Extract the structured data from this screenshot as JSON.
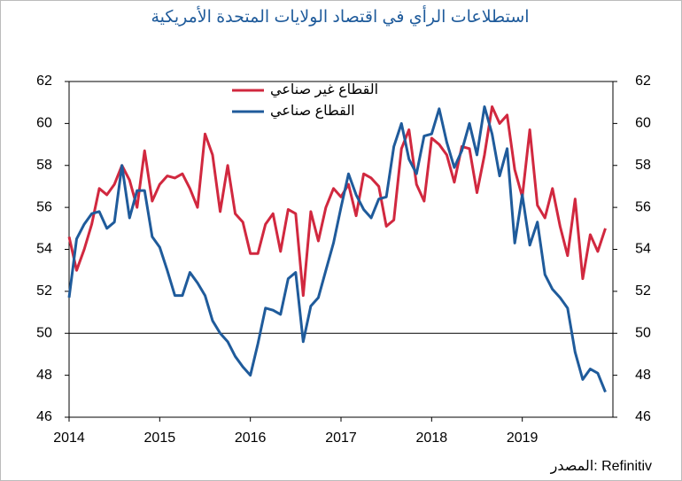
{
  "chart_data": {
    "type": "line",
    "title": "استطلاعات الرأي في اقتصاد الولايات المتحدة الأمريكية",
    "source": "المصدر: Refinitiv",
    "x": [
      2014,
      2014.083,
      2014.167,
      2014.25,
      2014.333,
      2014.417,
      2014.5,
      2014.583,
      2014.667,
      2014.75,
      2014.833,
      2014.917,
      2015,
      2015.083,
      2015.167,
      2015.25,
      2015.333,
      2015.417,
      2015.5,
      2015.583,
      2015.667,
      2015.75,
      2015.833,
      2015.917,
      2016,
      2016.083,
      2016.167,
      2016.25,
      2016.333,
      2016.417,
      2016.5,
      2016.583,
      2016.667,
      2016.75,
      2016.833,
      2016.917,
      2017,
      2017.083,
      2017.167,
      2017.25,
      2017.333,
      2017.417,
      2017.5,
      2017.583,
      2017.667,
      2017.75,
      2017.833,
      2017.917,
      2018,
      2018.083,
      2018.167,
      2018.25,
      2018.333,
      2018.417,
      2018.5,
      2018.583,
      2018.667,
      2018.75,
      2018.833,
      2018.917,
      2019,
      2019.083,
      2019.167,
      2019.25,
      2019.333,
      2019.417,
      2019.5,
      2019.583,
      2019.667,
      2019.75,
      2019.833,
      2019.917
    ],
    "series": [
      {
        "name": "القطاع غير صناعي",
        "color": "#d1283f",
        "values": [
          54.6,
          53.0,
          54.0,
          55.2,
          56.9,
          56.6,
          57.1,
          58.0,
          57.3,
          56.0,
          58.7,
          56.3,
          57.1,
          57.5,
          57.4,
          57.6,
          56.9,
          56.0,
          59.5,
          58.5,
          55.8,
          58.0,
          55.7,
          55.3,
          53.8,
          53.8,
          55.2,
          55.7,
          53.9,
          55.9,
          55.7,
          51.8,
          55.8,
          54.4,
          56.0,
          56.9,
          56.5,
          57.1,
          55.6,
          57.6,
          57.4,
          57.0,
          55.1,
          55.4,
          58.8,
          59.7,
          57.1,
          56.3,
          59.3,
          59.0,
          58.5,
          57.2,
          58.9,
          58.8,
          56.7,
          58.5,
          60.8,
          60.0,
          60.4,
          57.8,
          56.5,
          59.7,
          56.1,
          55.5,
          56.9,
          55.1,
          53.7,
          56.4,
          52.6,
          54.7,
          53.9,
          55.0
        ]
      },
      {
        "name": "القطاع صناعي",
        "color": "#1f5b9b",
        "values": [
          51.7,
          54.5,
          55.2,
          55.7,
          55.8,
          55.0,
          55.3,
          58.0,
          55.5,
          56.8,
          56.8,
          54.6,
          54.1,
          53.0,
          51.8,
          51.8,
          52.9,
          52.4,
          51.8,
          50.6,
          50.0,
          49.6,
          48.9,
          48.4,
          48.0,
          49.5,
          51.2,
          51.1,
          50.9,
          52.6,
          52.9,
          49.6,
          51.3,
          51.7,
          53.0,
          54.3,
          56.0,
          57.6,
          56.6,
          55.9,
          55.5,
          56.4,
          56.5,
          58.9,
          60.0,
          58.3,
          57.6,
          59.4,
          59.5,
          60.7,
          59.1,
          57.9,
          58.7,
          60.0,
          58.5,
          60.8,
          59.5,
          57.5,
          58.8,
          54.3,
          56.6,
          54.2,
          55.3,
          52.8,
          52.1,
          51.7,
          51.2,
          49.1,
          47.8,
          48.3,
          48.1,
          47.2
        ]
      }
    ],
    "xlim": [
      2014,
      2020
    ],
    "xticks": [
      2014,
      2015,
      2016,
      2017,
      2018,
      2019
    ],
    "ylim": [
      46,
      62
    ],
    "yticks": [
      46,
      48,
      50,
      52,
      54,
      56,
      58,
      60,
      62
    ],
    "y2lim": [
      46,
      62
    ],
    "y2ticks": [
      46,
      48,
      50,
      52,
      54,
      56,
      58,
      60,
      62
    ],
    "reference_line": 50,
    "legend": "top"
  }
}
